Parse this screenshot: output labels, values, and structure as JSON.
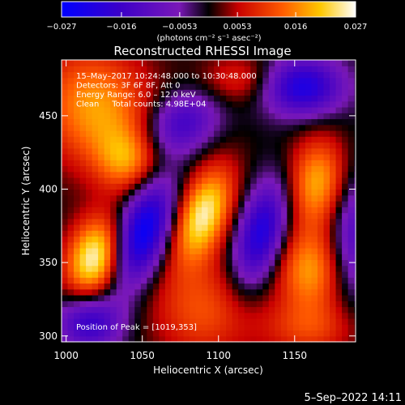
{
  "chart_data": {
    "type": "heatmap",
    "title": "Reconstructed RHESSI Image",
    "xlabel": "Heliocentric X (arcsec)",
    "ylabel": "Heliocentric Y (arcsec)",
    "xlim": [
      997,
      1190
    ],
    "ylim": [
      296,
      488
    ],
    "xticks": [
      1000,
      1050,
      1100,
      1150
    ],
    "yticks": [
      300,
      350,
      400,
      450
    ],
    "xtick_labels": [
      "1000",
      "1050",
      "1100",
      "1150"
    ],
    "ytick_labels": [
      "300",
      "350",
      "400",
      "450"
    ],
    "colorbar": {
      "min": -0.027,
      "max": 0.027,
      "ticks": [
        -0.027,
        -0.016,
        -0.0053,
        0.0053,
        0.016,
        0.027
      ],
      "tick_labels": [
        "−0.027",
        "−0.016",
        "−0.0053",
        "0.0053",
        "0.016",
        "0.027"
      ],
      "units_label": "(photons cm⁻² s⁻¹ asec⁻²)"
    },
    "info_lines": [
      "15–May–2017 10:24:48.000 to 10:30:48.000",
      "Detectors: 3F 6F 8F, Att 0",
      "Energy Range: 6.0 – 12.0 keV",
      "Clean     Total counts: 4.98E+04"
    ],
    "peak_label": "Position of Peak = [1019,353]",
    "peak": {
      "x": 1019,
      "y": 353
    },
    "components": [
      {
        "x": 1019,
        "y": 353,
        "amp": 0.027,
        "sx": 13,
        "sy": 20,
        "rot": -15
      },
      {
        "x": 1090,
        "y": 383,
        "amp": 0.025,
        "sx": 12,
        "sy": 24,
        "rot": -20
      },
      {
        "x": 1165,
        "y": 405,
        "amp": 0.019,
        "sx": 14,
        "sy": 22,
        "rot": -5
      },
      {
        "x": 1160,
        "y": 345,
        "amp": 0.017,
        "sx": 15,
        "sy": 20,
        "rot": 0
      },
      {
        "x": 1020,
        "y": 455,
        "amp": 0.018,
        "sx": 26,
        "sy": 30,
        "rot": 25
      },
      {
        "x": 1040,
        "y": 420,
        "amp": 0.013,
        "sx": 14,
        "sy": 15,
        "rot": 0
      },
      {
        "x": 1090,
        "y": 318,
        "amp": 0.012,
        "sx": 24,
        "sy": 24,
        "rot": -30
      },
      {
        "x": 1115,
        "y": 475,
        "amp": 0.009,
        "sx": 18,
        "sy": 12,
        "rot": 0
      },
      {
        "x": 1160,
        "y": 305,
        "amp": 0.01,
        "sx": 22,
        "sy": 14,
        "rot": 0
      },
      {
        "x": 1050,
        "y": 370,
        "amp": -0.027,
        "sx": 12,
        "sy": 27,
        "rot": -20
      },
      {
        "x": 1128,
        "y": 370,
        "amp": -0.022,
        "sx": 11,
        "sy": 26,
        "rot": -15
      },
      {
        "x": 1155,
        "y": 470,
        "amp": -0.022,
        "sx": 19,
        "sy": 14,
        "rot": 0
      },
      {
        "x": 1075,
        "y": 445,
        "amp": -0.016,
        "sx": 18,
        "sy": 14,
        "rot": 30
      },
      {
        "x": 1015,
        "y": 310,
        "amp": -0.018,
        "sx": 15,
        "sy": 14,
        "rot": 0
      },
      {
        "x": 1190,
        "y": 370,
        "amp": -0.014,
        "sx": 12,
        "sy": 30,
        "rot": 0
      }
    ]
  },
  "footer": {
    "date": "5–Sep–2022 14:11"
  }
}
